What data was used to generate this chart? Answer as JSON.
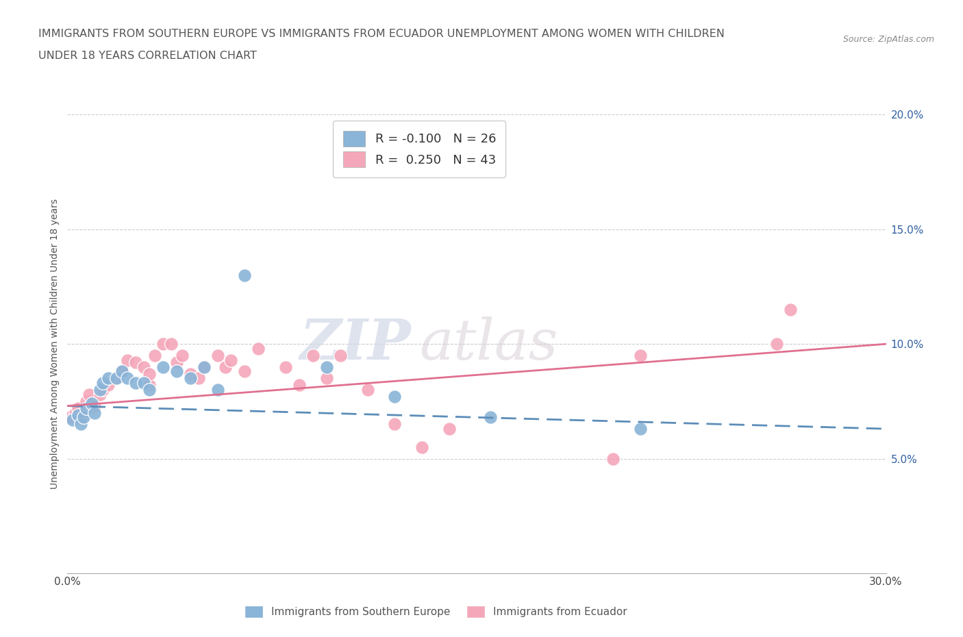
{
  "title_line1": "IMMIGRANTS FROM SOUTHERN EUROPE VS IMMIGRANTS FROM ECUADOR UNEMPLOYMENT AMONG WOMEN WITH CHILDREN",
  "title_line2": "UNDER 18 YEARS CORRELATION CHART",
  "source": "Source: ZipAtlas.com",
  "ylabel": "Unemployment Among Women with Children Under 18 years",
  "xlim": [
    0.0,
    0.3
  ],
  "ylim": [
    0.0,
    0.2
  ],
  "ytick_positions": [
    0.05,
    0.1,
    0.15,
    0.2
  ],
  "ytick_labels": [
    "5.0%",
    "10.0%",
    "15.0%",
    "20.0%"
  ],
  "xtick_positions": [
    0.0,
    0.05,
    0.1,
    0.15,
    0.2,
    0.25,
    0.3
  ],
  "xtick_labels": [
    "0.0%",
    "",
    "",
    "",
    "",
    "",
    "30.0%"
  ],
  "legend_r1": "R = -0.100",
  "legend_n1": "N = 26",
  "legend_r2": "R =  0.250",
  "legend_n2": "N = 43",
  "color_blue": "#8ab4d8",
  "color_pink": "#f4a7b9",
  "color_blue_line": "#5b8db8",
  "color_pink_line": "#e07090",
  "watermark_text": "ZIP",
  "watermark_text2": "atlas",
  "grid_color": "#cccccc",
  "bg_color": "#ffffff",
  "blue_scatter_x": [
    0.002,
    0.004,
    0.005,
    0.006,
    0.007,
    0.009,
    0.01,
    0.012,
    0.013,
    0.015,
    0.018,
    0.02,
    0.022,
    0.025,
    0.028,
    0.03,
    0.035,
    0.04,
    0.045,
    0.05,
    0.055,
    0.065,
    0.095,
    0.12,
    0.155,
    0.21
  ],
  "blue_scatter_y": [
    0.067,
    0.069,
    0.065,
    0.068,
    0.072,
    0.074,
    0.07,
    0.08,
    0.083,
    0.085,
    0.085,
    0.088,
    0.085,
    0.083,
    0.083,
    0.08,
    0.09,
    0.088,
    0.085,
    0.09,
    0.08,
    0.13,
    0.09,
    0.077,
    0.068,
    0.063
  ],
  "pink_scatter_x": [
    0.001,
    0.003,
    0.004,
    0.005,
    0.007,
    0.008,
    0.01,
    0.012,
    0.013,
    0.015,
    0.018,
    0.02,
    0.022,
    0.025,
    0.028,
    0.03,
    0.03,
    0.032,
    0.035,
    0.038,
    0.04,
    0.042,
    0.045,
    0.048,
    0.05,
    0.055,
    0.058,
    0.06,
    0.065,
    0.07,
    0.08,
    0.085,
    0.09,
    0.095,
    0.1,
    0.11,
    0.12,
    0.13,
    0.14,
    0.2,
    0.21,
    0.26,
    0.265
  ],
  "pink_scatter_y": [
    0.068,
    0.07,
    0.072,
    0.068,
    0.075,
    0.078,
    0.073,
    0.078,
    0.08,
    0.082,
    0.085,
    0.088,
    0.093,
    0.092,
    0.09,
    0.082,
    0.087,
    0.095,
    0.1,
    0.1,
    0.092,
    0.095,
    0.087,
    0.085,
    0.09,
    0.095,
    0.09,
    0.093,
    0.088,
    0.098,
    0.09,
    0.082,
    0.095,
    0.085,
    0.095,
    0.08,
    0.065,
    0.055,
    0.063,
    0.05,
    0.095,
    0.1,
    0.115
  ],
  "blue_line_x0": 0.0,
  "blue_line_y0": 0.073,
  "blue_line_x1": 0.3,
  "blue_line_y1": 0.063,
  "pink_line_x0": 0.0,
  "pink_line_y0": 0.073,
  "pink_line_x1": 0.3,
  "pink_line_y1": 0.1
}
